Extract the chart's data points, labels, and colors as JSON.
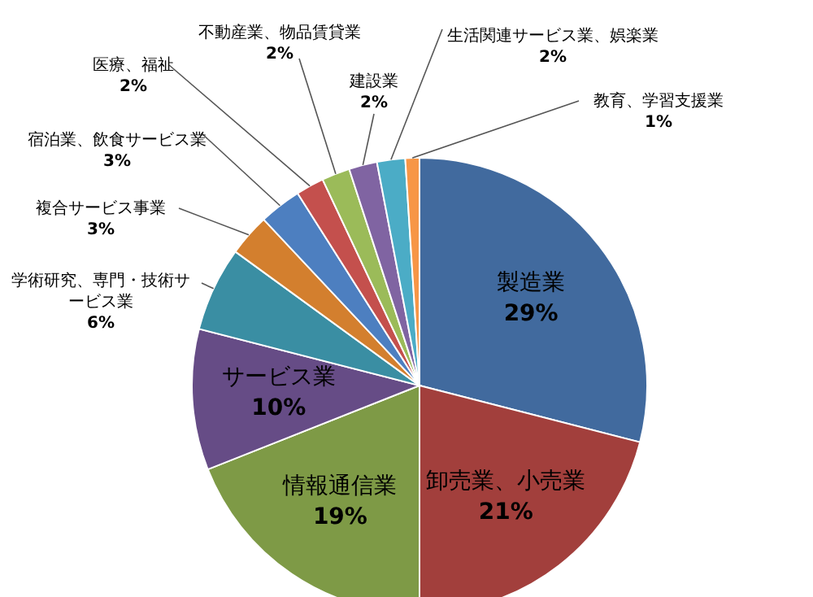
{
  "chart_data": {
    "type": "pie",
    "categories": [
      "製造業",
      "卸売業、小売業",
      "情報通信業",
      "サービス業",
      "学術研究、専門・技術サービス業",
      "複合サービス事業",
      "宿泊業、飲食サービス業",
      "医療、福祉",
      "不動産業、物品賃貸業",
      "建設業",
      "生活関連サービス業、娯楽業",
      "教育、学習支援業"
    ],
    "values": [
      29,
      21,
      19,
      10,
      6,
      3,
      3,
      2,
      2,
      2,
      2,
      1
    ],
    "value_labels": [
      "29%",
      "21%",
      "19%",
      "10%",
      "6%",
      "3%",
      "3%",
      "2%",
      "2%",
      "2%",
      "2%",
      "1%"
    ],
    "colors": [
      "#416a9e",
      "#a23f3c",
      "#7e9a46",
      "#664c86",
      "#3a8ea3",
      "#d37f2e",
      "#4d7fc0",
      "#c4504d",
      "#9bbb59",
      "#8064a2",
      "#4bacc6",
      "#f79646"
    ],
    "legend": false
  }
}
